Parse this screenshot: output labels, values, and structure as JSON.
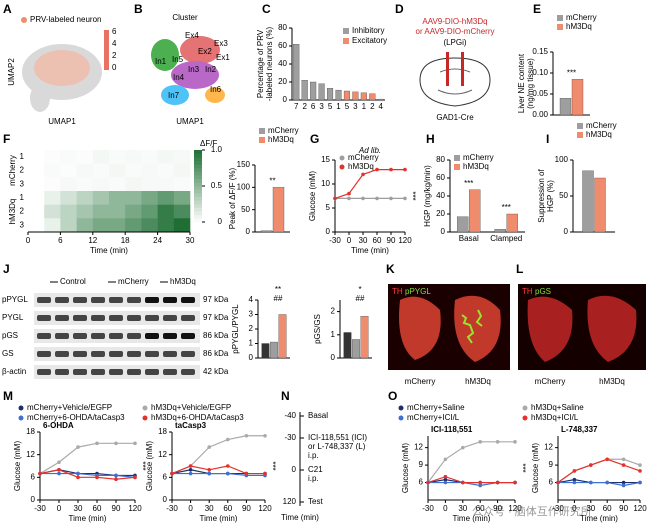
{
  "panel_letters": [
    "A",
    "B",
    "C",
    "D",
    "E",
    "F",
    "G",
    "H",
    "I",
    "J",
    "K",
    "L",
    "M",
    "N",
    "O"
  ],
  "panel_a": {
    "legend": "PRV-labeled neuron",
    "y_label": "UMAP2",
    "x_label": "UMAP1",
    "colorbar_ticks": [
      "6",
      "4",
      "2",
      "0"
    ]
  },
  "panel_b": {
    "title": "Cluster",
    "x_label": "UMAP1",
    "clusters": [
      "Ex4",
      "Ex2",
      "Ex3",
      "Ex1",
      "In1",
      "In5",
      "In3",
      "In2",
      "In4",
      "In7",
      "In6"
    ]
  },
  "panel_d": {
    "virus_1": "AAV9-DIO-hM3Dq",
    "virus_2": "or AAV9-DIO-mCherry",
    "region": "(LPGi)",
    "mouse": "GAD1-Cre"
  },
  "panel_j": {
    "groups": [
      "Control",
      "mCherry",
      "hM3Dq"
    ],
    "rows": [
      "pPYGL",
      "PYGL",
      "pGS",
      "GS",
      "β-actin"
    ],
    "sizes": [
      "97 kDa",
      "97 kDa",
      "86 kDa",
      "86 kDa",
      "42 kDa"
    ]
  },
  "panel_k": {
    "stain_1": "TH",
    "stain_2": "pPYGL",
    "labels": [
      "mCherry",
      "hM3Dq"
    ]
  },
  "panel_l": {
    "stain_1": "TH",
    "stain_2": "pGS",
    "labels": [
      "mCherry",
      "hM3Dq"
    ]
  },
  "panel_n": {
    "steps": [
      [
        "-40",
        "Basal"
      ],
      [
        "-30",
        "ICI-118,551 (ICI)",
        "or L-748,337 (L)",
        "i.p."
      ],
      [
        "0",
        "C21",
        "i.p."
      ],
      [
        "120",
        "Test"
      ]
    ],
    "axis_label": "Time (min)"
  },
  "watermark": "公众号 · 脑体互作研究所",
  "chart_data": [
    {
      "type": "bar",
      "ylabel": [
        "Percentage of PRV",
        "-labeled neurons (%)"
      ],
      "categories": [
        "7",
        "2",
        "6",
        "3",
        "5",
        "1",
        "5",
        "3",
        "1",
        "2",
        "4"
      ],
      "series": [
        {
          "name": "Inhibitory",
          "color": "#9e9e9e",
          "values": [
            62,
            22,
            20,
            18,
            13,
            11,
            null,
            null,
            null,
            null,
            null
          ]
        },
        {
          "name": "Excitatory",
          "color": "#f08c6e",
          "values": [
            null,
            null,
            null,
            null,
            null,
            null,
            10,
            9,
            8,
            7,
            1
          ]
        }
      ],
      "ylim": [
        0,
        80
      ],
      "yticks": [
        0,
        20,
        40,
        60,
        80
      ],
      "legend": "upper right"
    },
    {
      "type": "bar",
      "ylabel": [
        "Liver NE content",
        "(ng/mg tissue)"
      ],
      "categories": [
        null
      ],
      "series": [
        {
          "name": "mCherry",
          "color": "#9e9e9e",
          "values": [
            0.04
          ]
        },
        {
          "name": "hM3Dq",
          "color": "#f08c6e",
          "values": [
            0.085
          ]
        }
      ],
      "ylim": [
        0,
        0.15
      ],
      "yticks": [
        {
          "value": 0,
          "label": "0.00"
        },
        0.05,
        {
          "value": 0.1,
          "label": "0.10"
        },
        0.15
      ],
      "annotations": [
        "***"
      ],
      "legend": "above"
    },
    {
      "type": "heatmap",
      "legend_title": "ΔF/F",
      "xlabel": "Time (min)",
      "groups": [
        "mCherry",
        "hM3Dq"
      ],
      "row_labels": [
        "1",
        "2",
        "3",
        "1",
        "2",
        "3"
      ],
      "xlim": [
        0,
        30
      ],
      "xticks": [
        0,
        6,
        12,
        18,
        24,
        30
      ],
      "clim": [
        0,
        1
      ],
      "cticks": [
        0,
        0.5,
        {
          "value": 1,
          "label": "1.0"
        }
      ],
      "color": "#1f6e34",
      "values": [
        [
          0,
          0.02,
          0.03,
          0.02,
          0.05,
          0.03,
          0.04,
          0.03,
          0.05,
          0.04
        ],
        [
          0,
          0.03,
          0.02,
          0.04,
          0.03,
          0.05,
          0.03,
          0.04,
          0.03,
          0.05
        ],
        [
          0,
          0.02,
          0.04,
          0.03,
          0.04,
          0.03,
          0.05,
          0.04,
          0.04,
          0.03
        ],
        [
          0,
          0.1,
          0.2,
          0.3,
          0.4,
          0.5,
          0.5,
          0.6,
          0.7,
          0.6
        ],
        [
          0,
          0.2,
          0.3,
          0.4,
          0.5,
          0.5,
          0.6,
          0.7,
          0.9,
          0.8
        ],
        [
          0,
          0.1,
          0.3,
          0.5,
          0.6,
          0.6,
          0.7,
          0.8,
          0.9,
          1
        ]
      ]
    },
    {
      "type": "bar",
      "ylabel": "Peak of ΔF/F (%)",
      "categories": [
        null
      ],
      "series": [
        {
          "name": "mCherry",
          "color": "#9e9e9e",
          "values": [
            3
          ]
        },
        {
          "name": "hM3Dq",
          "color": "#f08c6e",
          "values": [
            100
          ]
        }
      ],
      "ylim": [
        0,
        150
      ],
      "yticks": [
        0,
        50,
        100,
        150
      ],
      "annotations": [
        "**"
      ],
      "legend": "above"
    },
    {
      "type": "line",
      "title": "Ad lib.",
      "title_position": "above",
      "ylabel": "Glucose (mM)",
      "xlabel": "Time (min)",
      "x": [
        -30,
        0,
        30,
        60,
        90,
        120
      ],
      "xlim": [
        -30,
        120
      ],
      "xticks": [
        -30,
        0,
        30,
        60,
        90,
        120
      ],
      "ylim": [
        0,
        15
      ],
      "yticks": [
        0,
        5,
        10,
        15
      ],
      "series": [
        {
          "name": "mCherry",
          "color": "#9e9e9e",
          "values": [
            7,
            7,
            7,
            7,
            7,
            7
          ]
        },
        {
          "name": "hM3Dq",
          "color": "#e4312b",
          "values": [
            7,
            8,
            12,
            13,
            13,
            13
          ]
        }
      ],
      "annotations": [
        "***"
      ],
      "legend": "upper left"
    },
    {
      "type": "bar",
      "ylabel": "HGP (mg/kg/min)",
      "categories": [
        "Basal",
        "Clamped"
      ],
      "series": [
        {
          "name": "mCherry",
          "color": "#9e9e9e",
          "values": [
            17,
            3
          ]
        },
        {
          "name": "hM3Dq",
          "color": "#f08c6e",
          "values": [
            47,
            20
          ]
        }
      ],
      "ylim": [
        0,
        80
      ],
      "yticks": [
        0,
        20,
        40,
        60,
        80
      ],
      "annotations": [
        "***",
        "***"
      ],
      "legend": "upper left"
    },
    {
      "type": "bar",
      "ylabel": [
        "Suppression of",
        "HGP (%)"
      ],
      "categories": [
        null
      ],
      "series": [
        {
          "name": "mCherry",
          "color": "#9e9e9e",
          "values": [
            85
          ]
        },
        {
          "name": "hM3Dq",
          "color": "#f08c6e",
          "values": [
            75
          ]
        }
      ],
      "ylim": [
        0,
        100
      ],
      "yticks": [
        0,
        50,
        100
      ],
      "legend": "above"
    },
    {
      "type": "bar",
      "ylabel": "pPYGL/PYGL",
      "categories": [
        null
      ],
      "series": [
        {
          "color": "#333333",
          "values": [
            1
          ]
        },
        {
          "color": "#9e9e9e",
          "values": [
            1.1
          ]
        },
        {
          "color": "#f08c6e",
          "values": [
            3
          ]
        }
      ],
      "ylim": [
        0,
        4
      ],
      "yticks": [
        0,
        1,
        2,
        3,
        4
      ],
      "annotations": [
        "**",
        "##"
      ]
    },
    {
      "type": "bar",
      "ylabel": "pGS/GS",
      "categories": [
        null
      ],
      "series": [
        {
          "color": "#333333",
          "values": [
            1.1
          ]
        },
        {
          "color": "#9e9e9e",
          "values": [
            0.8
          ]
        },
        {
          "color": "#f08c6e",
          "values": [
            1.8
          ]
        }
      ],
      "ylim": [
        0,
        2.5
      ],
      "yticks": [
        0,
        1,
        2
      ],
      "annotations": [
        "*",
        "##"
      ]
    },
    {
      "type": "line",
      "title": "6-OHDA",
      "ylabel": "Glucose (mM)",
      "xlabel": "Time (min)",
      "x": [
        -30,
        0,
        30,
        60,
        90,
        120
      ],
      "xlim": [
        -30,
        120
      ],
      "xticks": [
        -30,
        0,
        30,
        60,
        90,
        120
      ],
      "ylim": [
        0,
        18
      ],
      "yticks": [
        0,
        6,
        12,
        18
      ],
      "series": [
        {
          "name": "mCherry+Vehicle/EGFP",
          "color": "#1b2f6e",
          "values": [
            7,
            8,
            7,
            7,
            6.5,
            6.5
          ]
        },
        {
          "name": "hM3Dq+Vehicle/EGFP",
          "color": "#aaaaaa",
          "values": [
            7,
            10,
            14,
            15,
            15,
            15
          ]
        },
        {
          "name": "mCherry+6-OHDA/taCasp3",
          "color": "#3f6fd1",
          "values": [
            7,
            7,
            7,
            6.5,
            6.5,
            6
          ]
        },
        {
          "name": "hM3Dq+6-OHDA/taCasp3",
          "color": "#e4312b",
          "values": [
            7,
            8,
            6,
            6,
            5.5,
            6
          ]
        }
      ],
      "annotations": [
        "***"
      ],
      "legend": "header"
    },
    {
      "type": "line",
      "title": "taCasp3",
      "ylabel": "Glucose (mM)",
      "xlabel": "Time (min)",
      "x": [
        -30,
        0,
        30,
        60,
        90,
        120
      ],
      "xlim": [
        -30,
        120
      ],
      "xticks": [
        -30,
        0,
        30,
        60,
        90,
        120
      ],
      "ylim": [
        0,
        18
      ],
      "yticks": [
        0,
        6,
        12,
        18
      ],
      "series": [
        {
          "color": "#1b2f6e",
          "values": [
            7,
            8,
            7,
            7,
            7,
            7
          ]
        },
        {
          "color": "#aaaaaa",
          "values": [
            7,
            9,
            14,
            16,
            17,
            17
          ]
        },
        {
          "color": "#3f6fd1",
          "values": [
            7,
            7,
            7,
            7,
            6.5,
            6.5
          ]
        },
        {
          "color": "#e4312b",
          "values": [
            7,
            9,
            8,
            9,
            7,
            7
          ]
        }
      ],
      "annotations": [
        "***"
      ]
    },
    {
      "type": "line",
      "title": "ICI-118,551",
      "ylabel": "Glucose (mM)",
      "xlabel": "Time (min)",
      "x": [
        -30,
        0,
        30,
        60,
        90,
        120
      ],
      "xlim": [
        -30,
        120
      ],
      "xticks": [
        -30,
        0,
        30,
        60,
        90,
        120
      ],
      "ylim": [
        3,
        14
      ],
      "yticks": [
        6,
        9,
        12
      ],
      "series": [
        {
          "name": "mCherry+Saline",
          "color": "#1b2f6e",
          "values": [
            6,
            6.5,
            6,
            6,
            6,
            6
          ]
        },
        {
          "name": "hM3Dq+Saline",
          "color": "#aaaaaa",
          "values": [
            6,
            10,
            12,
            13,
            13,
            13
          ]
        },
        {
          "name": "mCherry+ICI/L",
          "color": "#3f6fd1",
          "values": [
            6,
            6,
            6,
            5.5,
            6,
            6
          ]
        },
        {
          "name": "hM3Dq+ICI/L",
          "color": "#e4312b",
          "values": [
            6,
            7,
            6,
            6,
            6,
            6
          ]
        }
      ],
      "annotations": [
        "***"
      ],
      "legend": "header"
    },
    {
      "type": "line",
      "title": "L-748,337",
      "ylabel": "Glucose (mM)",
      "xlabel": "Time (min)",
      "x": [
        -30,
        0,
        30,
        60,
        90,
        120
      ],
      "xlim": [
        -30,
        120
      ],
      "xticks": [
        -30,
        0,
        30,
        60,
        90,
        120
      ],
      "ylim": [
        3,
        14
      ],
      "yticks": [
        6,
        9,
        12
      ],
      "series": [
        {
          "color": "#1b2f6e",
          "values": [
            6,
            6.5,
            6,
            6,
            6,
            6
          ]
        },
        {
          "color": "#aaaaaa",
          "values": [
            6,
            8,
            9,
            10,
            10,
            9
          ]
        },
        {
          "color": "#3f6fd1",
          "values": [
            6,
            6,
            6,
            6,
            5.5,
            6
          ]
        },
        {
          "color": "#e4312b",
          "values": [
            6,
            8,
            9,
            10,
            9,
            8
          ]
        }
      ]
    }
  ]
}
